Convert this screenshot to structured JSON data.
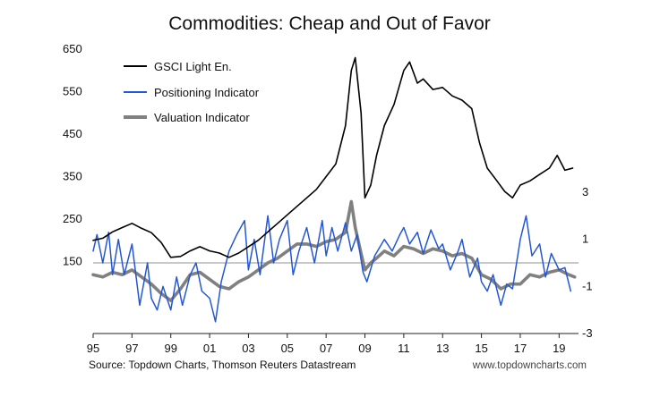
{
  "chart_data": {
    "type": "line",
    "title": "Commodities: Cheap and Out of Favor",
    "source": "Source: Topdown Charts, Thomson Reuters Datastream",
    "website": "www.topdowncharts.com",
    "x_tick_labels": [
      "95",
      "97",
      "99",
      "01",
      "03",
      "05",
      "07",
      "09",
      "11",
      "13",
      "15",
      "17",
      "19"
    ],
    "x_tick_years": [
      1995,
      1997,
      1999,
      2001,
      2003,
      2005,
      2007,
      2009,
      2011,
      2013,
      2015,
      2017,
      2019
    ],
    "xlim": [
      1995,
      2020
    ],
    "left_axis": {
      "ylim": [
        50,
        650
      ],
      "ticks": [
        "650",
        "550",
        "450",
        "350",
        "250",
        "150"
      ]
    },
    "right_axis": {
      "ylim": [
        -3,
        7
      ],
      "ticks": [
        "3",
        "1",
        "-1",
        "-3"
      ],
      "zero_line": 0
    },
    "legend": {
      "placement": "top-left",
      "entries": [
        "GSCI Light En.",
        "Positioning Indicator",
        "Valuation Indicator"
      ]
    },
    "series": [
      {
        "name": "GSCI Light En.",
        "axis": "left",
        "color": "#000000",
        "x": [
          1995.0,
          1995.5,
          1996.0,
          1996.5,
          1997.0,
          1997.5,
          1998.0,
          1998.5,
          1999.0,
          1999.5,
          2000.0,
          2000.5,
          2001.0,
          2001.5,
          2002.0,
          2002.5,
          2003.0,
          2003.5,
          2004.0,
          2004.5,
          2005.0,
          2005.5,
          2006.0,
          2006.5,
          2007.0,
          2007.5,
          2008.0,
          2008.3,
          2008.5,
          2008.8,
          2009.0,
          2009.3,
          2009.6,
          2010.0,
          2010.5,
          2011.0,
          2011.3,
          2011.7,
          2012.0,
          2012.5,
          2013.0,
          2013.5,
          2014.0,
          2014.5,
          2014.9,
          2015.3,
          2015.8,
          2016.2,
          2016.6,
          2017.0,
          2017.5,
          2018.0,
          2018.5,
          2018.9,
          2019.3,
          2019.7
        ],
        "y": [
          200,
          205,
          220,
          230,
          240,
          228,
          218,
          195,
          160,
          162,
          175,
          185,
          175,
          170,
          160,
          170,
          185,
          200,
          220,
          240,
          260,
          280,
          300,
          320,
          350,
          380,
          470,
          600,
          630,
          500,
          300,
          330,
          400,
          470,
          520,
          600,
          620,
          570,
          580,
          555,
          560,
          540,
          530,
          510,
          430,
          370,
          340,
          315,
          300,
          330,
          340,
          355,
          370,
          400,
          365,
          370
        ]
      },
      {
        "name": "Positioning Indicator",
        "axis": "right",
        "color": "#2457d6",
        "x": [
          1995.0,
          1995.2,
          1995.5,
          1995.8,
          1996.0,
          1996.3,
          1996.6,
          1997.0,
          1997.4,
          1997.8,
          1998.0,
          1998.3,
          1998.6,
          1999.0,
          1999.3,
          1999.6,
          2000.0,
          2000.3,
          2000.6,
          2001.0,
          2001.3,
          2001.6,
          2002.0,
          2002.4,
          2002.8,
          2003.0,
          2003.3,
          2003.6,
          2004.0,
          2004.3,
          2004.6,
          2005.0,
          2005.3,
          2005.6,
          2006.0,
          2006.4,
          2006.8,
          2007.0,
          2007.3,
          2007.6,
          2008.0,
          2008.3,
          2008.6,
          2008.9,
          2009.1,
          2009.5,
          2010.0,
          2010.4,
          2010.8,
          2011.0,
          2011.3,
          2011.7,
          2012.0,
          2012.4,
          2012.8,
          2013.0,
          2013.4,
          2013.8,
          2014.0,
          2014.4,
          2014.8,
          2015.0,
          2015.3,
          2015.6,
          2016.0,
          2016.3,
          2016.6,
          2017.0,
          2017.3,
          2017.6,
          2018.0,
          2018.3,
          2018.6,
          2019.0,
          2019.3,
          2019.6
        ],
        "y": [
          0.5,
          1.2,
          0.0,
          1.3,
          -0.5,
          1.0,
          -0.5,
          0.8,
          -1.8,
          0.0,
          -1.5,
          -2.0,
          -1.0,
          -2.0,
          -0.6,
          -1.8,
          -0.5,
          0.0,
          -1.2,
          -1.5,
          -2.5,
          -0.8,
          0.5,
          1.2,
          1.8,
          -0.3,
          1.0,
          -0.5,
          2.0,
          0.0,
          1.0,
          1.8,
          -0.5,
          0.5,
          1.5,
          0.0,
          1.8,
          0.3,
          1.5,
          0.5,
          1.7,
          0.5,
          1.2,
          -0.4,
          -0.8,
          0.3,
          1.0,
          0.5,
          1.2,
          1.5,
          0.8,
          1.3,
          0.4,
          1.4,
          0.6,
          0.8,
          -0.3,
          0.5,
          1.0,
          -0.6,
          0.2,
          -0.8,
          -1.2,
          -0.5,
          -1.8,
          -0.9,
          -1.1,
          1.0,
          2.0,
          0.3,
          0.8,
          -0.6,
          0.4,
          -0.3,
          -0.2,
          -1.2
        ]
      },
      {
        "name": "Valuation Indicator",
        "axis": "right",
        "color": "#808080",
        "x": [
          1995.0,
          1995.5,
          1996.0,
          1996.5,
          1997.0,
          1997.5,
          1998.0,
          1998.5,
          1999.0,
          1999.5,
          2000.0,
          2000.5,
          2001.0,
          2001.5,
          2002.0,
          2002.5,
          2003.0,
          2003.5,
          2004.0,
          2004.5,
          2005.0,
          2005.5,
          2006.0,
          2006.5,
          2007.0,
          2007.5,
          2008.0,
          2008.3,
          2008.5,
          2008.8,
          2009.0,
          2009.3,
          2009.6,
          2010.0,
          2010.5,
          2011.0,
          2011.5,
          2012.0,
          2012.5,
          2013.0,
          2013.5,
          2014.0,
          2014.5,
          2015.0,
          2015.5,
          2016.0,
          2016.5,
          2017.0,
          2017.5,
          2018.0,
          2018.5,
          2019.0,
          2019.5,
          2019.8
        ],
        "y": [
          -0.5,
          -0.6,
          -0.4,
          -0.5,
          -0.3,
          -0.6,
          -0.9,
          -1.3,
          -1.6,
          -1.1,
          -0.5,
          -0.4,
          -0.7,
          -1.0,
          -1.1,
          -0.8,
          -0.6,
          -0.3,
          0.0,
          0.2,
          0.5,
          0.8,
          0.8,
          0.7,
          0.9,
          1.0,
          1.3,
          2.6,
          1.5,
          0.4,
          -0.3,
          0.0,
          0.2,
          0.5,
          0.3,
          0.7,
          0.6,
          0.4,
          0.6,
          0.5,
          0.3,
          0.4,
          0.2,
          -0.5,
          -0.7,
          -1.1,
          -0.9,
          -0.9,
          -0.5,
          -0.6,
          -0.4,
          -0.3,
          -0.5,
          -0.6
        ]
      }
    ]
  }
}
